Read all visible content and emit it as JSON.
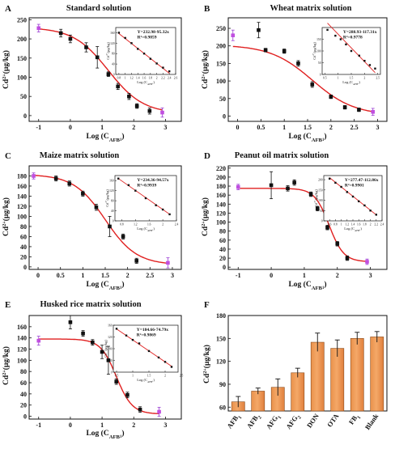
{
  "figure": {
    "panels": [
      {
        "letter": "A",
        "title": "Standard solution"
      },
      {
        "letter": "B",
        "title": "Wheat matrix solution"
      },
      {
        "letter": "C",
        "title": "Maize matrix solution"
      },
      {
        "letter": "D",
        "title": "Peanut oil  matrix solution"
      },
      {
        "letter": "E",
        "title": "Husked rice matrix solution"
      },
      {
        "letter": "F",
        "title": ""
      }
    ]
  },
  "chart_data": [
    {
      "panel": "A",
      "type": "scatter",
      "title": "Standard solution",
      "xlabel": "Log (C_AFB1)",
      "ylabel": "Cd2+(μg/kg)",
      "xlim": [
        -1.3,
        3.5
      ],
      "ylim": [
        -15,
        255
      ],
      "xticks": [
        -1,
        0,
        1,
        2,
        3
      ],
      "yticks": [
        0,
        50,
        100,
        150,
        200,
        250
      ],
      "points": [
        {
          "x": -1.0,
          "y": 228,
          "err": 10
        },
        {
          "x": -0.3,
          "y": 215,
          "err": 10
        },
        {
          "x": 0.0,
          "y": 200,
          "err": 10
        },
        {
          "x": 0.5,
          "y": 178,
          "err": 12
        },
        {
          "x": 0.85,
          "y": 152,
          "err": 28
        },
        {
          "x": 1.2,
          "y": 108,
          "err": 6
        },
        {
          "x": 1.5,
          "y": 76,
          "err": 8
        },
        {
          "x": 1.85,
          "y": 50,
          "err": 8
        },
        {
          "x": 2.1,
          "y": 25,
          "err": 6
        },
        {
          "x": 2.5,
          "y": 12,
          "err": 8
        },
        {
          "x": 2.9,
          "y": 8,
          "err": 12
        }
      ],
      "fit": {
        "top": 230,
        "bottom": 5,
        "x0": 1.2,
        "hill": 0.55
      },
      "inset": {
        "equation": "Y=232.98-95.32x",
        "r2": "R²=0.9859",
        "xlabel": "Log (C_AFB1)",
        "ylabel": "Cd2+(μg/kg)",
        "xlim": [
          0.7,
          2.6
        ],
        "xticks": [
          0.8,
          1.0,
          1.2,
          1.4,
          1.6,
          1.8,
          2.0,
          2.2,
          2.4,
          2.6
        ],
        "ylim": [
          0,
          180
        ],
        "yticks": [
          0,
          40,
          80,
          120,
          160
        ],
        "points": [
          [
            0.8,
            160
          ],
          [
            1.0,
            140
          ],
          [
            1.2,
            120
          ],
          [
            1.4,
            98
          ],
          [
            1.6,
            80
          ],
          [
            1.8,
            60
          ],
          [
            2.0,
            42
          ],
          [
            2.2,
            26
          ],
          [
            2.4,
            12
          ]
        ],
        "line": [
          232.98,
          -95.32
        ]
      }
    },
    {
      "panel": "B",
      "type": "scatter",
      "title": "Wheat matrix solution",
      "xlabel": "Log (C_AFB1)",
      "ylabel": "Cd2+(μg/kg)",
      "xlim": [
        -0.2,
        3.2
      ],
      "ylim": [
        -15,
        280
      ],
      "xticks": [
        0.0,
        0.5,
        1.0,
        1.5,
        2.0,
        2.5,
        3.0
      ],
      "yticks": [
        0,
        50,
        100,
        150,
        200,
        250
      ],
      "points": [
        {
          "x": -0.1,
          "y": 230,
          "err": 15
        },
        {
          "x": 0.45,
          "y": 245,
          "err": 22
        },
        {
          "x": 0.6,
          "y": 188,
          "err": 5
        },
        {
          "x": 1.0,
          "y": 185,
          "err": 6
        },
        {
          "x": 1.3,
          "y": 150,
          "err": 8
        },
        {
          "x": 1.6,
          "y": 90,
          "err": 8
        },
        {
          "x": 2.0,
          "y": 55,
          "err": 5
        },
        {
          "x": 2.3,
          "y": 25,
          "err": 5
        },
        {
          "x": 2.6,
          "y": 18,
          "err": 5
        },
        {
          "x": 2.9,
          "y": 12,
          "err": 10
        }
      ],
      "fit": {
        "top": 203,
        "bottom": 2,
        "x0": 1.6,
        "hill": 0.45
      },
      "inset": {
        "equation": "Y=288.93-117.31x",
        "r2": "R²=0.9778",
        "xlabel": "Log (C_AFB1)",
        "ylabel": "Cd2+(μg/kg)",
        "xlim": [
          0.4,
          2.6
        ],
        "xticks": [
          0.5,
          1.0,
          1.5,
          2.0,
          2.5
        ],
        "ylim": [
          0,
          200
        ],
        "yticks": [
          0,
          50,
          100,
          150
        ],
        "points": [
          [
            0.6,
            190
          ],
          [
            0.9,
            165
          ],
          [
            1.1,
            150
          ],
          [
            1.3,
            128
          ],
          [
            1.5,
            100
          ],
          [
            1.8,
            80
          ],
          [
            2.0,
            58
          ],
          [
            2.2,
            40
          ],
          [
            2.4,
            25
          ]
        ],
        "line": [
          288.93,
          -117.31
        ]
      }
    },
    {
      "panel": "C",
      "type": "scatter",
      "title": "Maize matrix solution",
      "xlabel": "Log (C_AFB1)",
      "ylabel": "Cd2+(μg/kg)",
      "xlim": [
        -0.2,
        3.2
      ],
      "ylim": [
        -5,
        200
      ],
      "xticks": [
        0.0,
        0.5,
        1.0,
        1.5,
        2.0,
        2.5,
        3.0
      ],
      "yticks": [
        0,
        20,
        40,
        60,
        80,
        100,
        120,
        140,
        160,
        180
      ],
      "points": [
        {
          "x": -0.1,
          "y": 180,
          "err": 6
        },
        {
          "x": 0.4,
          "y": 175,
          "err": 5
        },
        {
          "x": 0.7,
          "y": 165,
          "err": 5
        },
        {
          "x": 1.0,
          "y": 145,
          "err": 5
        },
        {
          "x": 1.3,
          "y": 118,
          "err": 6
        },
        {
          "x": 1.6,
          "y": 80,
          "err": 20
        },
        {
          "x": 1.9,
          "y": 60,
          "err": 5
        },
        {
          "x": 2.2,
          "y": 12,
          "err": 5
        },
        {
          "x": 2.9,
          "y": 8,
          "err": 10
        }
      ],
      "fit": {
        "top": 183,
        "bottom": 4,
        "x0": 1.5,
        "hill": 0.35
      },
      "inset": {
        "equation": "Y=234.36-94.57x",
        "r2": "R²=0.9939",
        "xlabel": "Log (C_AFB1)",
        "ylabel": "Cd2+(μg/kg)",
        "xlim": [
          0.6,
          2.4
        ],
        "xticks": [
          0.8,
          1.2,
          1.6,
          2.0,
          2.4
        ],
        "ylim": [
          0,
          180
        ],
        "yticks": [
          0,
          40,
          80,
          120,
          160
        ],
        "points": [
          [
            0.7,
            168
          ],
          [
            1.0,
            142
          ],
          [
            1.2,
            120
          ],
          [
            1.5,
            90
          ],
          [
            1.8,
            62
          ],
          [
            2.0,
            45
          ],
          [
            2.2,
            26
          ]
        ],
        "line": [
          234.36,
          -94.57
        ]
      }
    },
    {
      "panel": "D",
      "type": "scatter",
      "title": "Peanut oil  matrix solution",
      "xlabel": "Log (C_AFB1)",
      "ylabel": "Cd2+(μg/kg)",
      "xlim": [
        -1.3,
        3.5
      ],
      "ylim": [
        -5,
        225
      ],
      "xticks": [
        -1,
        0,
        1,
        2,
        3
      ],
      "yticks": [
        0,
        20,
        40,
        60,
        80,
        100,
        120,
        140,
        160,
        180,
        200,
        220
      ],
      "points": [
        {
          "x": -1.0,
          "y": 178,
          "err": 6
        },
        {
          "x": 0.0,
          "y": 182,
          "err": 30
        },
        {
          "x": 0.5,
          "y": 175,
          "err": 6
        },
        {
          "x": 0.7,
          "y": 188,
          "err": 6
        },
        {
          "x": 1.2,
          "y": 162,
          "err": 5
        },
        {
          "x": 1.4,
          "y": 130,
          "err": 5
        },
        {
          "x": 1.7,
          "y": 88,
          "err": 5
        },
        {
          "x": 2.0,
          "y": 52,
          "err": 5
        },
        {
          "x": 2.3,
          "y": 20,
          "err": 5
        },
        {
          "x": 2.9,
          "y": 12,
          "err": 6
        }
      ],
      "fit": {
        "top": 175,
        "bottom": 12,
        "x0": 1.75,
        "hill": 0.22
      },
      "inset": {
        "equation": "Y=277.47-112.86x",
        "r2": "R²=0.9901",
        "xlabel": "Log (C_AFB1)",
        "ylabel": "Cd2+(μg/kg)",
        "xlim": [
          0.4,
          2.4
        ],
        "xticks": [
          0.6,
          0.8,
          1.0,
          1.2,
          1.4,
          1.6,
          1.8,
          2.0,
          2.2,
          2.4
        ],
        "ylim": [
          0,
          220
        ],
        "yticks": [
          0,
          50,
          100,
          150,
          200
        ],
        "points": [
          [
            0.6,
            205
          ],
          [
            0.8,
            185
          ],
          [
            1.0,
            165
          ],
          [
            1.2,
            140
          ],
          [
            1.4,
            118
          ],
          [
            1.6,
            95
          ],
          [
            1.8,
            75
          ],
          [
            2.0,
            50
          ],
          [
            2.2,
            30
          ]
        ],
        "line": [
          277.47,
          -112.86
        ]
      }
    },
    {
      "panel": "E",
      "type": "scatter",
      "title": "Husked rice matrix solution",
      "xlabel": "Log (C_AFB1)",
      "ylabel": "Cd2+(μg/kg)",
      "xlim": [
        -1.3,
        3.5
      ],
      "ylim": [
        -5,
        180
      ],
      "xticks": [
        -1,
        0,
        1,
        2,
        3
      ],
      "yticks": [
        0,
        20,
        40,
        60,
        80,
        100,
        120,
        140,
        160
      ],
      "points": [
        {
          "x": -1.0,
          "y": 135,
          "err": 8
        },
        {
          "x": 0.0,
          "y": 168,
          "err": 12
        },
        {
          "x": 0.4,
          "y": 148,
          "err": 5
        },
        {
          "x": 0.7,
          "y": 132,
          "err": 5
        },
        {
          "x": 1.0,
          "y": 115,
          "err": 12
        },
        {
          "x": 1.2,
          "y": 100,
          "err": 25
        },
        {
          "x": 1.45,
          "y": 62,
          "err": 5
        },
        {
          "x": 1.8,
          "y": 38,
          "err": 5
        },
        {
          "x": 2.2,
          "y": 12,
          "err": 5
        },
        {
          "x": 2.8,
          "y": 8,
          "err": 8
        }
      ],
      "fit": {
        "top": 138,
        "bottom": 4,
        "x0": 1.45,
        "hill": 0.25
      },
      "inset": {
        "equation": "Y=184.66-74.79x",
        "r2": "R²=0.9869",
        "xlabel": "Log (C_AFB1)",
        "ylabel": "Cd2+(μg/kg)",
        "xlim": [
          0.4,
          2.4
        ],
        "xticks": [
          0.5,
          1.0,
          1.5,
          2.0,
          2.5
        ],
        "ylim": [
          0,
          160
        ],
        "yticks": [
          0,
          40,
          80,
          120,
          160
        ],
        "points": [
          [
            0.5,
            148
          ],
          [
            0.8,
            125
          ],
          [
            1.0,
            110
          ],
          [
            1.2,
            98
          ],
          [
            1.5,
            72
          ],
          [
            1.8,
            50
          ],
          [
            2.0,
            35
          ],
          [
            2.2,
            18
          ]
        ],
        "line": [
          184.66,
          -74.79
        ]
      }
    },
    {
      "panel": "F",
      "type": "bar",
      "title": "",
      "xlabel": "",
      "ylabel": "Cd2+(μg/kg)",
      "ylim": [
        55,
        180
      ],
      "yticks": [
        60,
        90,
        120,
        150,
        180
      ],
      "categories": [
        "AFB1",
        "AFB2",
        "AFG1",
        "AFG2",
        "DON",
        "OTA",
        "FB1",
        "Blank"
      ],
      "values": [
        67,
        81,
        86,
        105,
        145,
        137,
        150,
        152
      ],
      "errors": [
        7,
        4,
        11,
        6,
        12,
        11,
        8,
        7
      ],
      "bar_color": "#f4a868"
    }
  ]
}
